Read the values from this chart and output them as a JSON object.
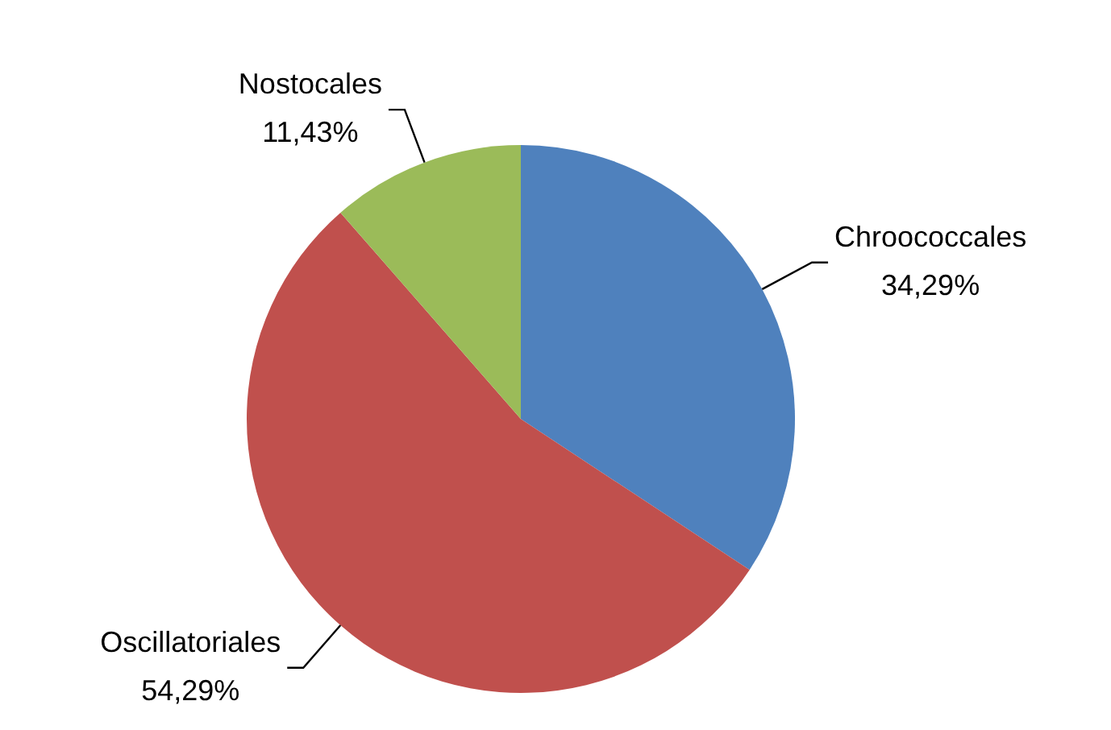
{
  "chart_data": {
    "type": "pie",
    "categories": [
      "Chroococcales",
      "Oscillatoriales",
      "Nostocales"
    ],
    "values": [
      34.29,
      54.29,
      11.43
    ],
    "value_labels": [
      "34,29%",
      "54,29%",
      "11,43%"
    ],
    "colors": [
      "#4f81bd",
      "#c0504d",
      "#9bbb59"
    ],
    "legend": false
  }
}
